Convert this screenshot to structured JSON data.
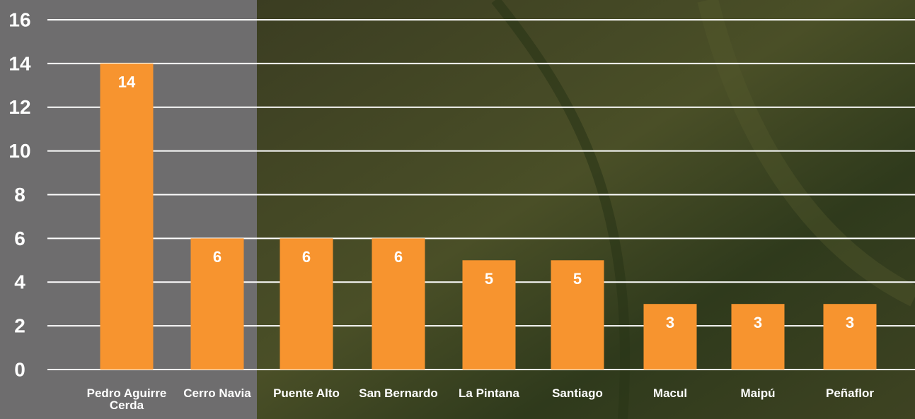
{
  "chart_data": {
    "type": "bar",
    "categories": [
      "Pedro Aguirre Cerda",
      "Cerro Navia",
      "Puente Alto",
      "San Bernardo",
      "La Pintana",
      "Santiago",
      "Macul",
      "Maipú",
      "Peñaflor"
    ],
    "values": [
      14,
      6,
      6,
      6,
      5,
      5,
      3,
      3,
      3
    ],
    "color": "#f7942f",
    "ylim": [
      0,
      16
    ],
    "yticks": [
      0,
      2,
      4,
      6,
      8,
      10,
      12,
      14,
      16
    ],
    "grid": true
  }
}
